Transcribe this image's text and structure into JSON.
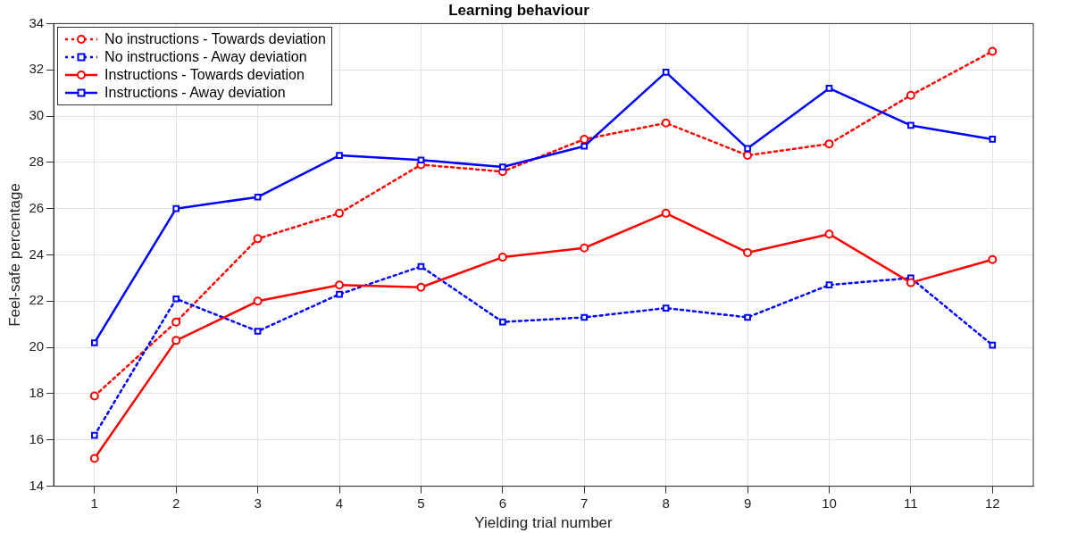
{
  "chart_data": {
    "type": "line",
    "title": "Learning behaviour",
    "xlabel": "Yielding trial number",
    "ylabel": "Feel-safe percentage",
    "x": [
      1,
      2,
      3,
      4,
      5,
      6,
      7,
      8,
      9,
      10,
      11,
      12
    ],
    "xlim": [
      0.5,
      12.5
    ],
    "xticks": [
      1,
      2,
      3,
      4,
      5,
      6,
      7,
      8,
      9,
      10,
      11,
      12
    ],
    "ylim": [
      14,
      34
    ],
    "yticks": [
      14,
      16,
      18,
      20,
      22,
      24,
      26,
      28,
      30,
      32,
      34
    ],
    "grid": true,
    "legend": "top left",
    "series": [
      {
        "name": "No instructions - Towards deviation",
        "color": "#ff0000",
        "marker": "circle",
        "line_style": "dotted",
        "values": [
          17.9,
          21.1,
          24.7,
          25.8,
          27.9,
          27.6,
          29.0,
          29.7,
          28.3,
          28.8,
          30.9,
          32.8
        ]
      },
      {
        "name": "No instructions - Away deviation",
        "color": "#0000ff",
        "marker": "square",
        "line_style": "dotted",
        "values": [
          16.2,
          22.1,
          20.7,
          22.3,
          23.5,
          21.1,
          21.3,
          21.7,
          21.3,
          22.7,
          23.0,
          20.1
        ]
      },
      {
        "name": "Instructions - Towards deviation",
        "color": "#ff0000",
        "marker": "circle",
        "line_style": "solid",
        "values": [
          15.2,
          20.3,
          22.0,
          22.7,
          22.6,
          23.9,
          24.3,
          25.8,
          24.1,
          24.9,
          22.8,
          23.8
        ]
      },
      {
        "name": "Instructions - Away deviation",
        "color": "#0000ff",
        "marker": "square",
        "line_style": "solid",
        "values": [
          20.2,
          26.0,
          26.5,
          28.3,
          28.1,
          27.8,
          28.7,
          31.9,
          28.6,
          31.2,
          29.6,
          29.0
        ]
      }
    ]
  }
}
